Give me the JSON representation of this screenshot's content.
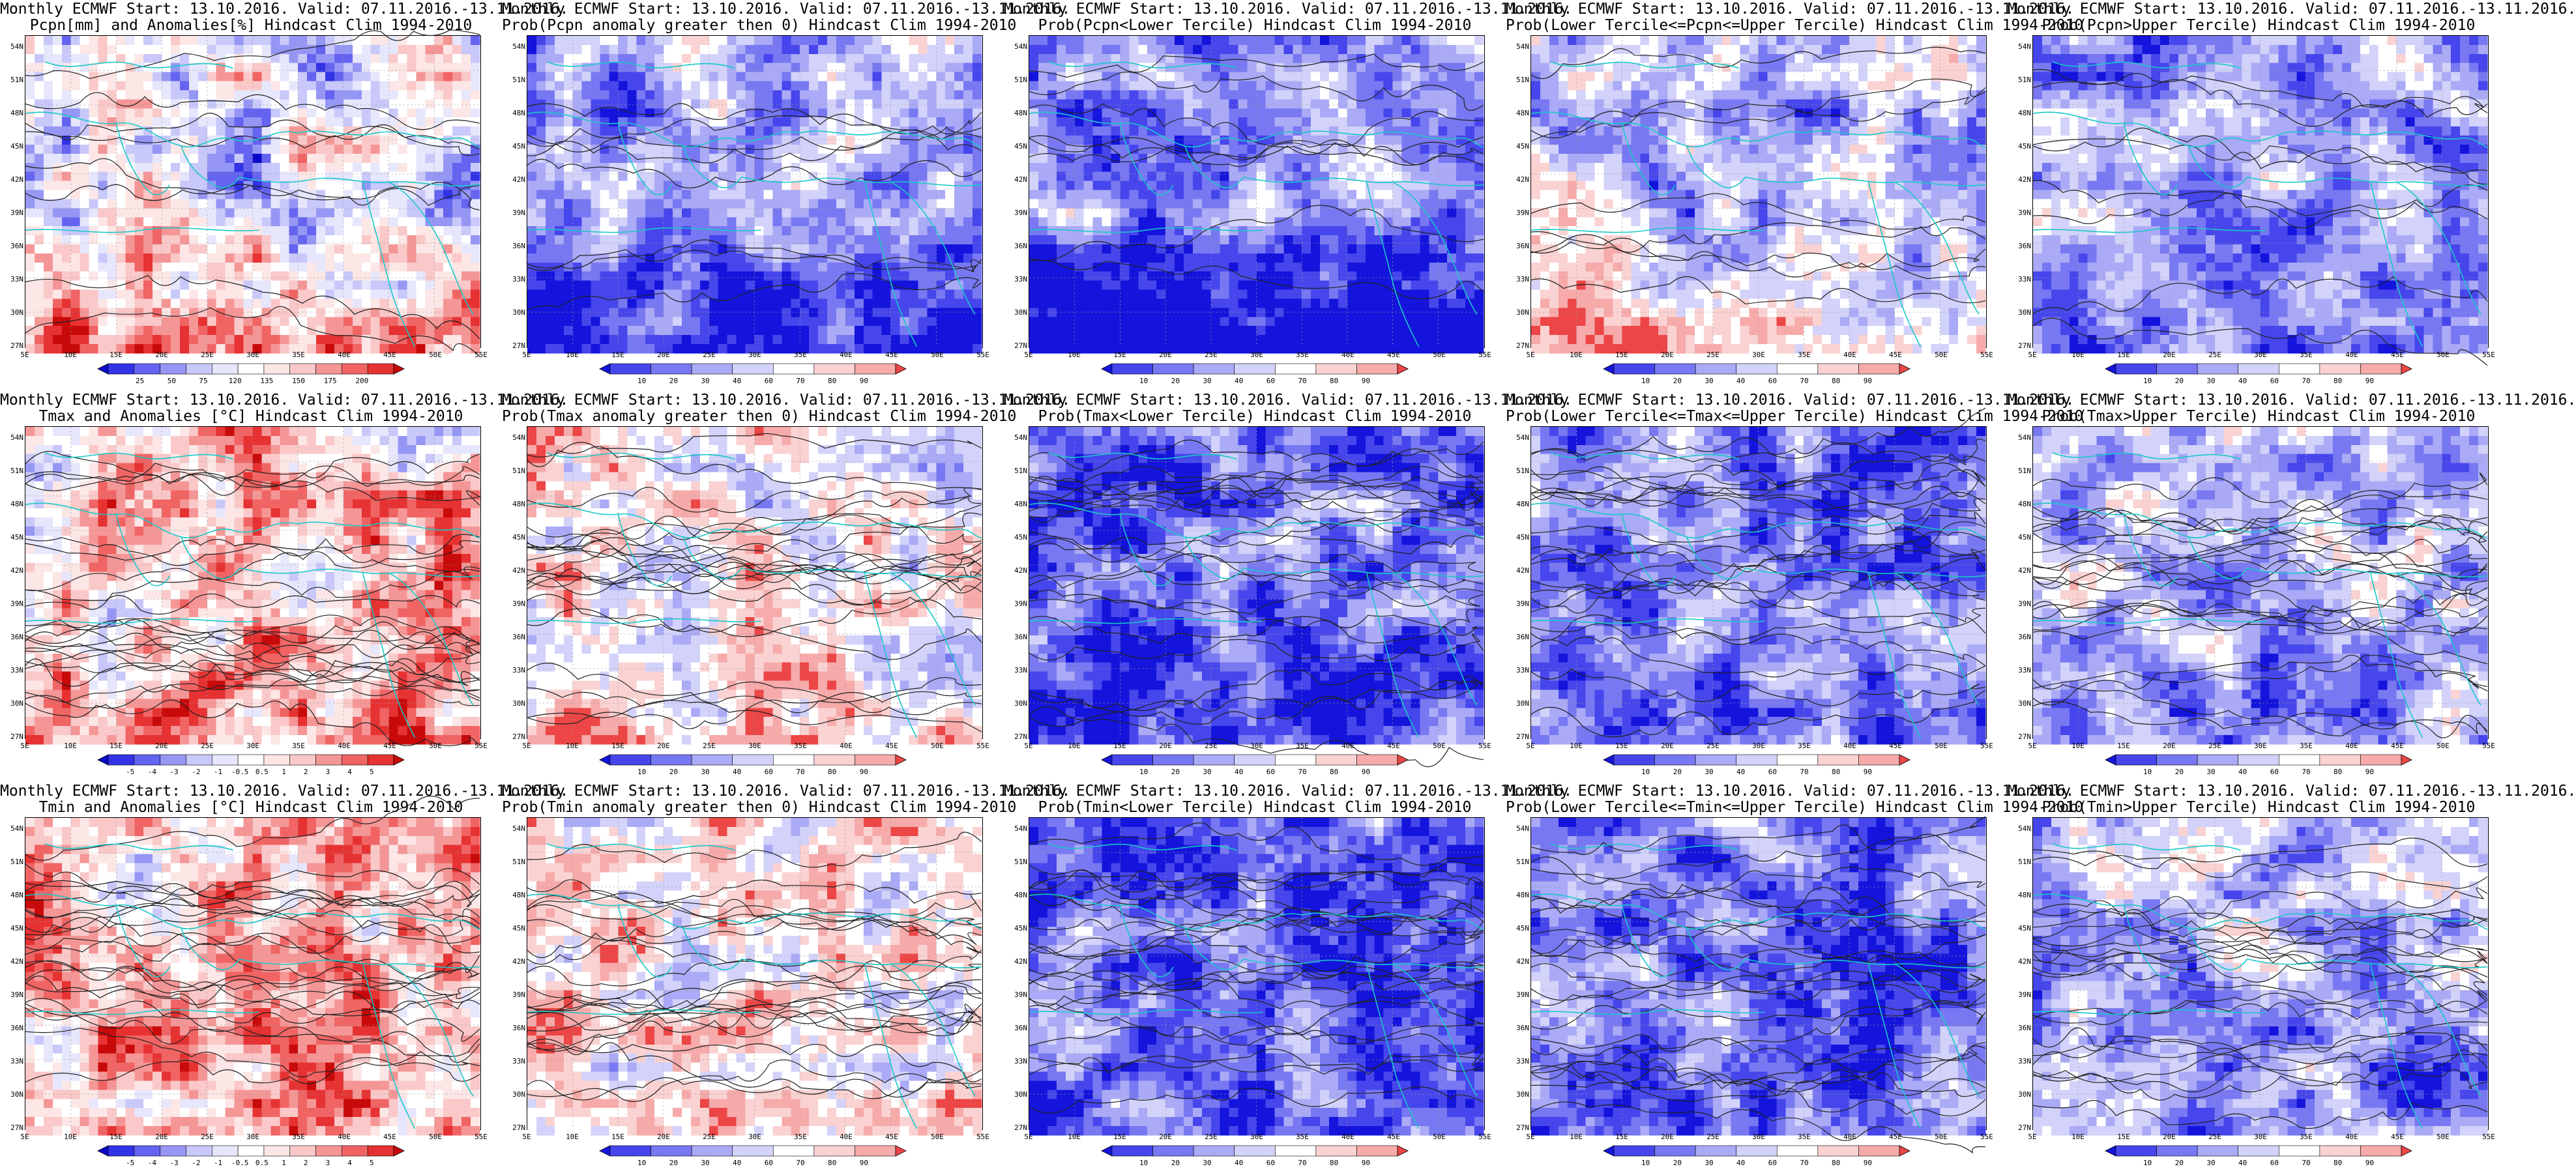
{
  "geo": {
    "lat_labels": [
      "54N",
      "51N",
      "48N",
      "45N",
      "42N",
      "39N",
      "36N",
      "33N",
      "30N",
      "27N"
    ],
    "lon_labels": [
      "5E",
      "10E",
      "15E",
      "20E",
      "25E",
      "30E",
      "35E",
      "40E",
      "45E",
      "50E",
      "55E"
    ]
  },
  "palettes": {
    "diverging": [
      "#0a0ac8",
      "#3232e6",
      "#6464f0",
      "#9696f5",
      "#c8c8fa",
      "#e6e6fc",
      "#ffffff",
      "#fce6e6",
      "#fac8c8",
      "#f59696",
      "#f06464",
      "#e63232",
      "#c80a0a"
    ],
    "probability": [
      "#1414dc",
      "#4646ec",
      "#7878f2",
      "#aaaaf6",
      "#d2d2fa",
      "#ffffff",
      "#fad2d2",
      "#f6aaaa",
      "#ec4646"
    ]
  },
  "legends": {
    "pcpn": [
      "25",
      "50",
      "75",
      "120",
      "135",
      "150",
      "175",
      "200"
    ],
    "temp": [
      "-5",
      "-4",
      "-3",
      "-2",
      "-1",
      "-0.5",
      "0.5",
      "1",
      "2",
      "3",
      "4",
      "5"
    ],
    "prob": [
      "10",
      "20",
      "30",
      "40",
      "60",
      "70",
      "80",
      "90"
    ]
  },
  "panels": [
    {
      "id": "pcpn-anomaly",
      "title_line1": "Monthly ECMWF Start: 13.10.2016. Valid: 07.11.2016.-13.11.2016.",
      "title_line2": "Pcpn[mm] and Anomalies[%] Hindcast Clim 1994-2010",
      "kind": "diverging",
      "legend": "pcpn",
      "bias": -0.1,
      "southBias": 0.55,
      "contours": "sparse"
    },
    {
      "id": "pcpn-prob-positive",
      "title_line1": "Monthly ECMWF Start: 13.10.2016. Valid: 07.11.2016.-13.11.2016.",
      "title_line2": "Prob(Pcpn anomaly greater then 0) Hindcast Clim 1994-2010",
      "kind": "probability",
      "legend": "prob",
      "bias": -0.25,
      "southBias": -0.6,
      "contours": "sparse"
    },
    {
      "id": "pcpn-prob-lower",
      "title_line1": "Monthly ECMWF Start: 13.10.2016. Valid: 07.11.2016.-13.11.2016.",
      "title_line2": "Prob(Pcpn<Lower Tercile) Hindcast Clim 1994-2010",
      "kind": "probability",
      "legend": "prob",
      "bias": -0.4,
      "southBias": -1.0,
      "contours": "sparse"
    },
    {
      "id": "pcpn-prob-middle",
      "title_line1": "Monthly ECMWF Start: 13.10.2016. Valid: 07.11.2016.-13.11.2016.",
      "title_line2": "Prob(Lower Tercile<=Pcpn<=Upper Tercile) Hindcast Clim 1994-2010",
      "kind": "probability",
      "legend": "prob",
      "bias": -0.2,
      "southBias": 0.7,
      "contours": "sparse"
    },
    {
      "id": "pcpn-prob-upper",
      "title_line1": "Monthly ECMWF Start: 13.10.2016. Valid: 07.11.2016.-13.11.2016.",
      "title_line2": "Prob(Pcpn>Upper Tercile) Hindcast Clim 1994-2010",
      "kind": "probability",
      "legend": "prob",
      "bias": -0.3,
      "southBias": -0.3,
      "contours": "sparse"
    },
    {
      "id": "tmax-anomaly",
      "title_line1": "Monthly ECMWF Start: 13.10.2016. Valid: 07.11.2016.-13.11.2016.",
      "title_line2": "Tmax and Anomalies [°C] Hindcast Clim 1994-2010",
      "kind": "diverging",
      "legend": "temp",
      "bias": 0.25,
      "southBias": 0.15,
      "contours": "dense"
    },
    {
      "id": "tmax-prob-positive",
      "title_line1": "Monthly ECMWF Start: 13.10.2016. Valid: 07.11.2016.-13.11.2016.",
      "title_line2": "Prob(Tmax anomaly greater then 0) Hindcast Clim 1994-2010",
      "kind": "probability",
      "legend": "prob",
      "bias": 0.3,
      "southBias": 0.2,
      "contours": "dense"
    },
    {
      "id": "tmax-prob-lower",
      "title_line1": "Monthly ECMWF Start: 13.10.2016. Valid: 07.11.2016.-13.11.2016.",
      "title_line2": "Prob(Tmax<Lower Tercile) Hindcast Clim 1994-2010",
      "kind": "probability",
      "legend": "prob",
      "bias": -0.55,
      "southBias": -0.2,
      "contours": "dense"
    },
    {
      "id": "tmax-prob-middle",
      "title_line1": "Monthly ECMWF Start: 13.10.2016. Valid: 07.11.2016.-13.11.2016.",
      "title_line2": "Prob(Lower Tercile<=Tmax<=Upper Tercile) Hindcast Clim 1994-2010",
      "kind": "probability",
      "legend": "prob",
      "bias": -0.45,
      "southBias": -0.1,
      "contours": "dense"
    },
    {
      "id": "tmax-prob-upper",
      "title_line1": "Monthly ECMWF Start: 13.10.2016. Valid: 07.11.2016.-13.11.2016.",
      "title_line2": "Prob(Tmax>Upper Tercile) Hindcast Clim 1994-2010",
      "kind": "probability",
      "legend": "prob",
      "bias": -0.1,
      "southBias": -0.25,
      "contours": "dense"
    },
    {
      "id": "tmin-anomaly",
      "title_line1": "Monthly ECMWF Start: 13.10.2016. Valid: 07.11.2016.-13.11.2016.",
      "title_line2": "Tmin and Anomalies [°C] Hindcast Clim 1994-2010",
      "kind": "diverging",
      "legend": "temp",
      "bias": 0.3,
      "southBias": 0.1,
      "contours": "dense"
    },
    {
      "id": "tmin-prob-positive",
      "title_line1": "Monthly ECMWF Start: 13.10.2016. Valid: 07.11.2016.-13.11.2016.",
      "title_line2": "Prob(Tmin anomaly greater then 0) Hindcast Clim 1994-2010",
      "kind": "probability",
      "legend": "prob",
      "bias": 0.35,
      "southBias": 0.1,
      "contours": "dense"
    },
    {
      "id": "tmin-prob-lower",
      "title_line1": "Monthly ECMWF Start: 13.10.2016. Valid: 07.11.2016.-13.11.2016.",
      "title_line2": "Prob(Tmin<Lower Tercile) Hindcast Clim 1994-2010",
      "kind": "probability",
      "legend": "prob",
      "bias": -0.6,
      "southBias": -0.1,
      "contours": "dense"
    },
    {
      "id": "tmin-prob-middle",
      "title_line1": "Monthly ECMWF Start: 13.10.2016. Valid: 07.11.2016.-13.11.2016.",
      "title_line2": "Prob(Lower Tercile<=Tmin<=Upper Tercile) Hindcast Clim 1994-2010",
      "kind": "probability",
      "legend": "prob",
      "bias": -0.5,
      "southBias": -0.1,
      "contours": "dense"
    },
    {
      "id": "tmin-prob-upper",
      "title_line1": "Monthly ECMWF Start: 13.10.2016. Valid: 07.11.2016.-13.11.2016.",
      "title_line2": "Prob(Tmin>Upper Tercile) Hindcast Clim 1994-2010",
      "kind": "probability",
      "legend": "prob",
      "bias": -0.15,
      "southBias": -0.2,
      "contours": "dense"
    }
  ]
}
